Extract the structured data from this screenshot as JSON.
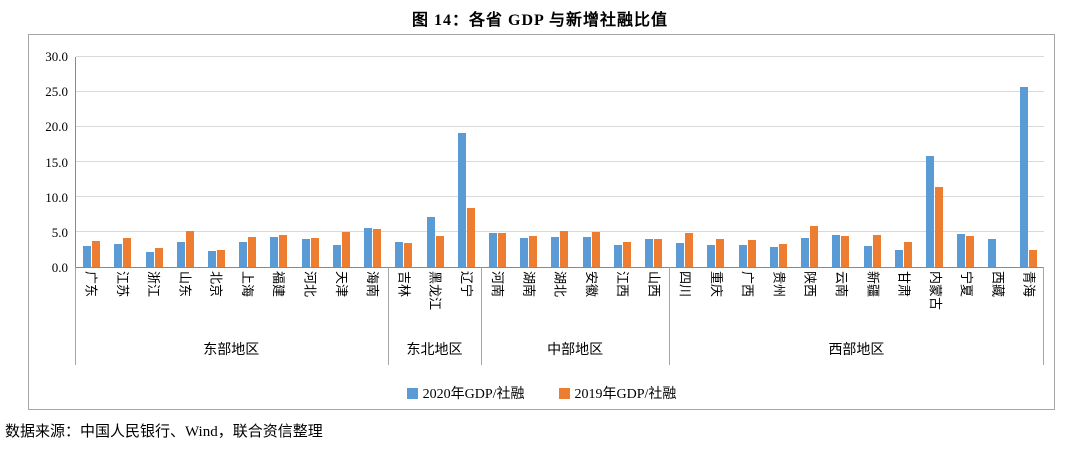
{
  "page": {
    "title": "图 14：各省 GDP 与新增社融比值",
    "source_note": "数据来源：中国人民银行、Wind，联合资信整理"
  },
  "chart_data": {
    "type": "bar",
    "title": "图 14：各省 GDP 与新增社融比值",
    "xlabel": "",
    "ylabel": "",
    "ylim": [
      0,
      30
    ],
    "ytick_interval": 5,
    "grid": true,
    "legend_position": "bottom",
    "axis_colors": {
      "grid": "#d9d9d9",
      "axis": "#898989"
    },
    "categories": [
      "广东",
      "江苏",
      "浙江",
      "山东",
      "北京",
      "上海",
      "福建",
      "河北",
      "天津",
      "海南",
      "吉林",
      "黑龙江",
      "辽宁",
      "河南",
      "湖南",
      "湖北",
      "安徽",
      "江西",
      "山西",
      "四川",
      "重庆",
      "广西",
      "贵州",
      "陕西",
      "云南",
      "新疆",
      "甘肃",
      "内蒙古",
      "宁夏",
      "西藏",
      "青海"
    ],
    "region_groups": [
      {
        "label": "东部地区",
        "count": 10
      },
      {
        "label": "东北地区",
        "count": 3
      },
      {
        "label": "中部地区",
        "count": 6
      },
      {
        "label": "西部地区",
        "count": 12
      }
    ],
    "series": [
      {
        "name": "2020年GDP/社融",
        "color": "#5B9BD5",
        "values": [
          3.0,
          3.3,
          2.2,
          3.6,
          2.3,
          3.6,
          4.3,
          4.0,
          3.2,
          5.6,
          3.6,
          7.2,
          19.2,
          4.9,
          4.2,
          4.3,
          4.3,
          3.2,
          4.0,
          3.5,
          3.2,
          3.2,
          2.9,
          4.2,
          4.6,
          3.0,
          2.4,
          15.9,
          4.7,
          4.0,
          25.7
        ]
      },
      {
        "name": "2019年GDP/社融",
        "color": "#ED7D31",
        "values": [
          3.7,
          4.2,
          2.7,
          5.2,
          2.5,
          4.3,
          4.6,
          4.2,
          5.0,
          5.5,
          3.5,
          4.5,
          8.5,
          4.8,
          4.5,
          5.2,
          5.0,
          3.6,
          4.0,
          4.9,
          4.0,
          3.9,
          3.3,
          5.8,
          4.5,
          4.6,
          3.6,
          11.5,
          4.5,
          0.0,
          2.4
        ]
      }
    ]
  }
}
